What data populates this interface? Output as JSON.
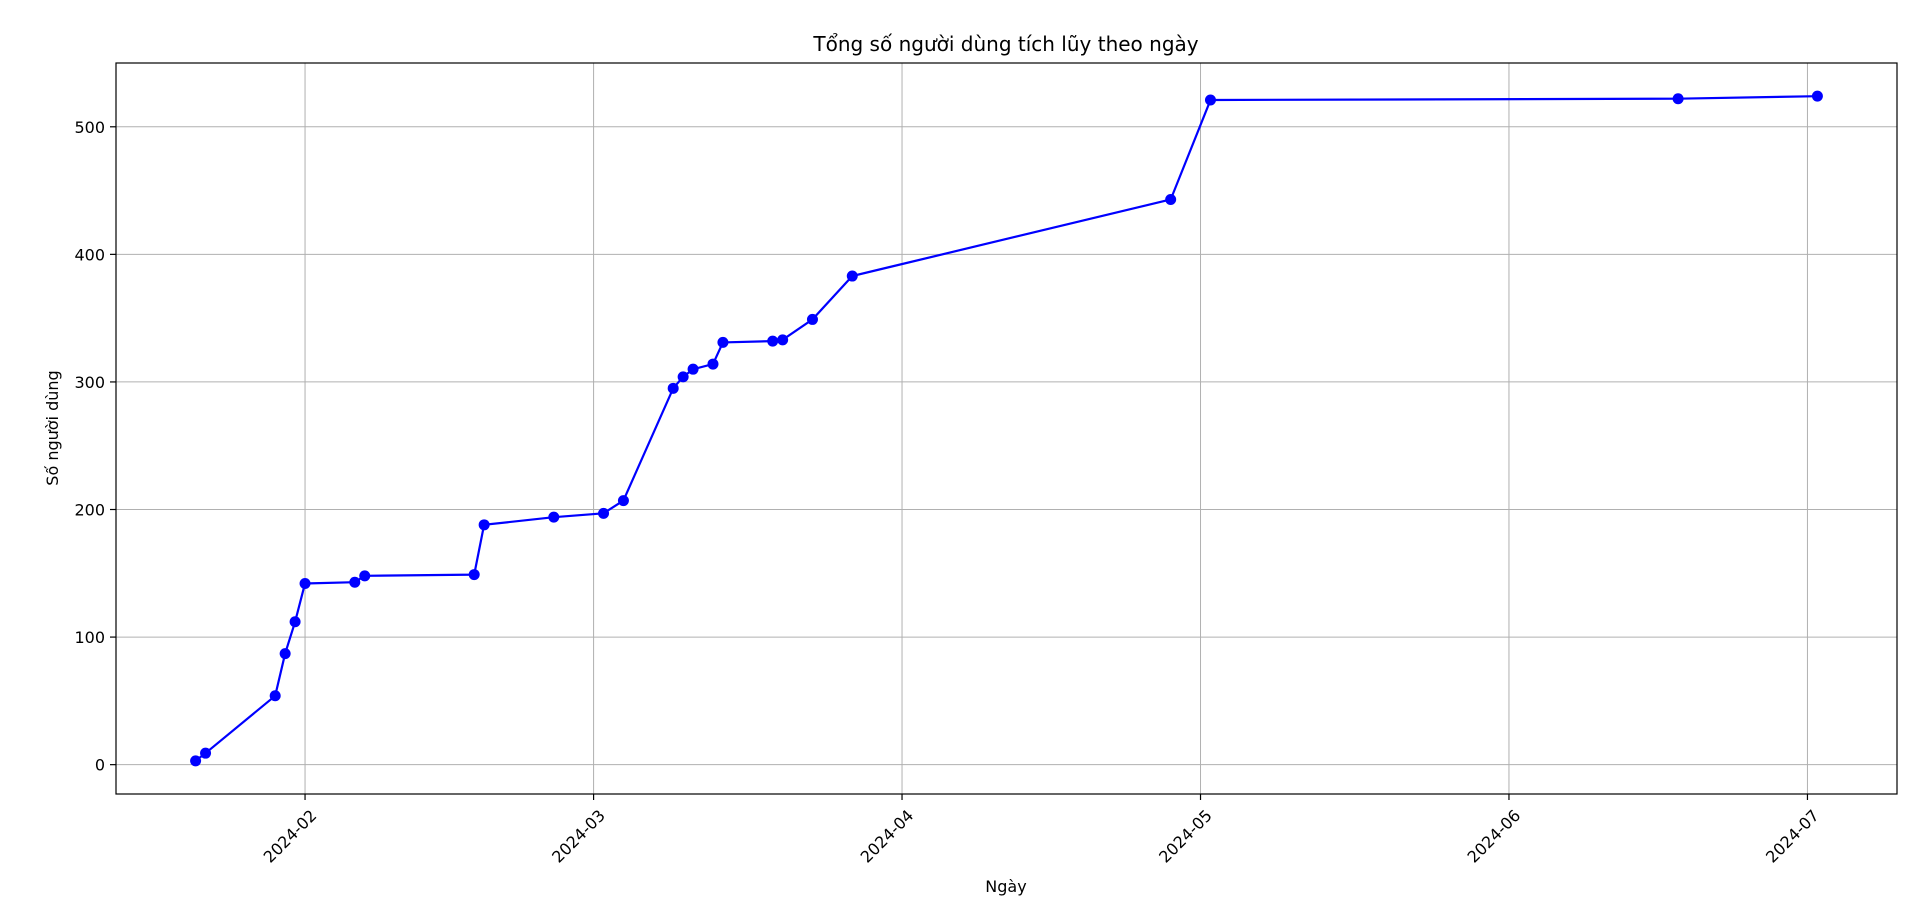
{
  "chart_data": {
    "type": "line",
    "title": "Tổng số người dùng tích lũy theo ngày",
    "xlabel": "Ngày",
    "ylabel": "Số người dùng",
    "xlim": [
      "2024-01-13",
      "2024-07-10"
    ],
    "ylim": [
      -23,
      550
    ],
    "grid": true,
    "x_ticks": [
      "2024-02",
      "2024-03",
      "2024-04",
      "2024-05",
      "2024-06",
      "2024-07"
    ],
    "x_tick_dates": [
      "2024-02-01",
      "2024-03-01",
      "2024-04-01",
      "2024-05-01",
      "2024-06-01",
      "2024-07-01"
    ],
    "y_ticks": [
      0,
      100,
      200,
      300,
      400,
      500
    ],
    "marker": "circle",
    "color": "#0000ff",
    "series": [
      {
        "x": [
          "2024-01-21",
          "2024-01-22",
          "2024-01-29",
          "2024-01-30",
          "2024-01-31",
          "2024-02-01",
          "2024-02-06",
          "2024-02-07",
          "2024-02-18",
          "2024-02-19",
          "2024-02-26",
          "2024-03-02",
          "2024-03-04",
          "2024-03-09",
          "2024-03-10",
          "2024-03-11",
          "2024-03-13",
          "2024-03-14",
          "2024-03-19",
          "2024-03-20",
          "2024-03-23",
          "2024-03-27",
          "2024-04-28",
          "2024-05-02",
          "2024-06-18",
          "2024-07-02"
        ],
        "values": [
          3,
          9,
          54,
          87,
          112,
          142,
          143,
          148,
          149,
          188,
          194,
          197,
          207,
          295,
          304,
          310,
          314,
          331,
          332,
          333,
          349,
          383,
          443,
          521,
          522,
          524
        ]
      }
    ]
  }
}
